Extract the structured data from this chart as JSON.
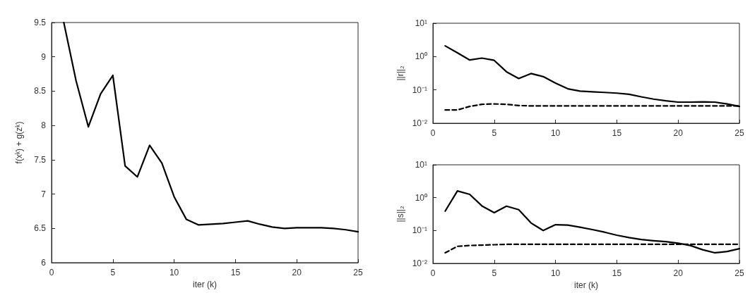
{
  "chart_data": [
    {
      "type": "line",
      "xlabel": "iter (k)",
      "ylabel": "f(xᵏ) + g(zᵏ)",
      "x": [
        1,
        2,
        3,
        4,
        5,
        6,
        7,
        8,
        9,
        10,
        11,
        12,
        13,
        14,
        15,
        16,
        17,
        18,
        19,
        20,
        21,
        22,
        23,
        24,
        25
      ],
      "series": [
        {
          "color": "#000000",
          "line_style": "solid",
          "values": [
            9.5,
            8.65,
            7.98,
            8.46,
            8.73,
            7.41,
            7.25,
            7.71,
            7.45,
            6.96,
            6.63,
            6.55,
            6.56,
            6.57,
            6.59,
            6.61,
            6.56,
            6.52,
            6.5,
            6.51,
            6.51,
            6.51,
            6.5,
            6.48,
            6.45
          ]
        }
      ],
      "xlim": [
        0,
        25
      ],
      "xticks": [
        0,
        5,
        10,
        15,
        20,
        25
      ],
      "ylim": [
        6,
        9.5
      ],
      "yticks": [
        6,
        6.5,
        7,
        7.5,
        8,
        8.5,
        9,
        9.5
      ],
      "grid": false,
      "marker": "none"
    },
    {
      "type": "line",
      "ylabel": "||r||₂",
      "x": [
        1,
        2,
        3,
        4,
        5,
        6,
        7,
        8,
        9,
        10,
        11,
        12,
        13,
        14,
        15,
        16,
        17,
        18,
        19,
        20,
        21,
        22,
        23,
        24,
        25
      ],
      "series": [
        {
          "color": "#000000",
          "line_style": "solid",
          "values": [
            2.1,
            1.3,
            0.79,
            0.9,
            0.77,
            0.35,
            0.22,
            0.31,
            0.25,
            0.16,
            0.108,
            0.092,
            0.088,
            0.084,
            0.08,
            0.074,
            0.062,
            0.053,
            0.047,
            0.043,
            0.043,
            0.044,
            0.043,
            0.038,
            0.032
          ]
        },
        {
          "color": "#000000",
          "line_style": "dashed",
          "values": [
            0.025,
            0.025,
            0.032,
            0.037,
            0.038,
            0.037,
            0.034,
            0.033,
            0.033,
            0.033,
            0.033,
            0.033,
            0.033,
            0.033,
            0.033,
            0.033,
            0.033,
            0.033,
            0.033,
            0.033,
            0.033,
            0.033,
            0.033,
            0.033,
            0.033
          ]
        }
      ],
      "xlim": [
        0,
        25
      ],
      "xticks": [
        0,
        5,
        10,
        15,
        20,
        25
      ],
      "ylim": [
        0.01,
        10
      ],
      "yticks": [
        {
          "value": 0.01,
          "label": "10⁻²"
        },
        {
          "value": 0.1,
          "label": "10⁻¹"
        },
        {
          "value": 1,
          "label": "10⁰"
        },
        {
          "value": 10,
          "label": "10¹"
        }
      ],
      "log": "y",
      "grid": false,
      "marker": "none"
    },
    {
      "type": "line",
      "xlabel": "iter (k)",
      "ylabel": "||s||₂",
      "x": [
        1,
        2,
        3,
        4,
        5,
        6,
        7,
        8,
        9,
        10,
        11,
        12,
        13,
        14,
        15,
        16,
        17,
        18,
        19,
        20,
        21,
        22,
        23,
        24,
        25
      ],
      "series": [
        {
          "color": "#000000",
          "line_style": "solid",
          "values": [
            0.39,
            1.6,
            1.26,
            0.56,
            0.35,
            0.55,
            0.43,
            0.17,
            0.1,
            0.15,
            0.146,
            0.126,
            0.107,
            0.089,
            0.072,
            0.061,
            0.053,
            0.049,
            0.046,
            0.041,
            0.035,
            0.026,
            0.021,
            0.023,
            0.028
          ]
        },
        {
          "color": "#000000",
          "line_style": "dashed",
          "values": [
            0.021,
            0.033,
            0.035,
            0.036,
            0.037,
            0.038,
            0.038,
            0.038,
            0.038,
            0.038,
            0.038,
            0.038,
            0.038,
            0.038,
            0.038,
            0.038,
            0.038,
            0.038,
            0.038,
            0.038,
            0.038,
            0.038,
            0.038,
            0.038,
            0.038
          ]
        }
      ],
      "xlim": [
        0,
        25
      ],
      "xticks": [
        0,
        5,
        10,
        15,
        20,
        25
      ],
      "ylim": [
        0.01,
        10
      ],
      "yticks": [
        {
          "value": 0.01,
          "label": "10⁻²"
        },
        {
          "value": 0.1,
          "label": "10⁻¹"
        },
        {
          "value": 1,
          "label": "10⁰"
        },
        {
          "value": 10,
          "label": "10¹"
        }
      ],
      "log": "y",
      "grid": false,
      "marker": "none"
    }
  ]
}
